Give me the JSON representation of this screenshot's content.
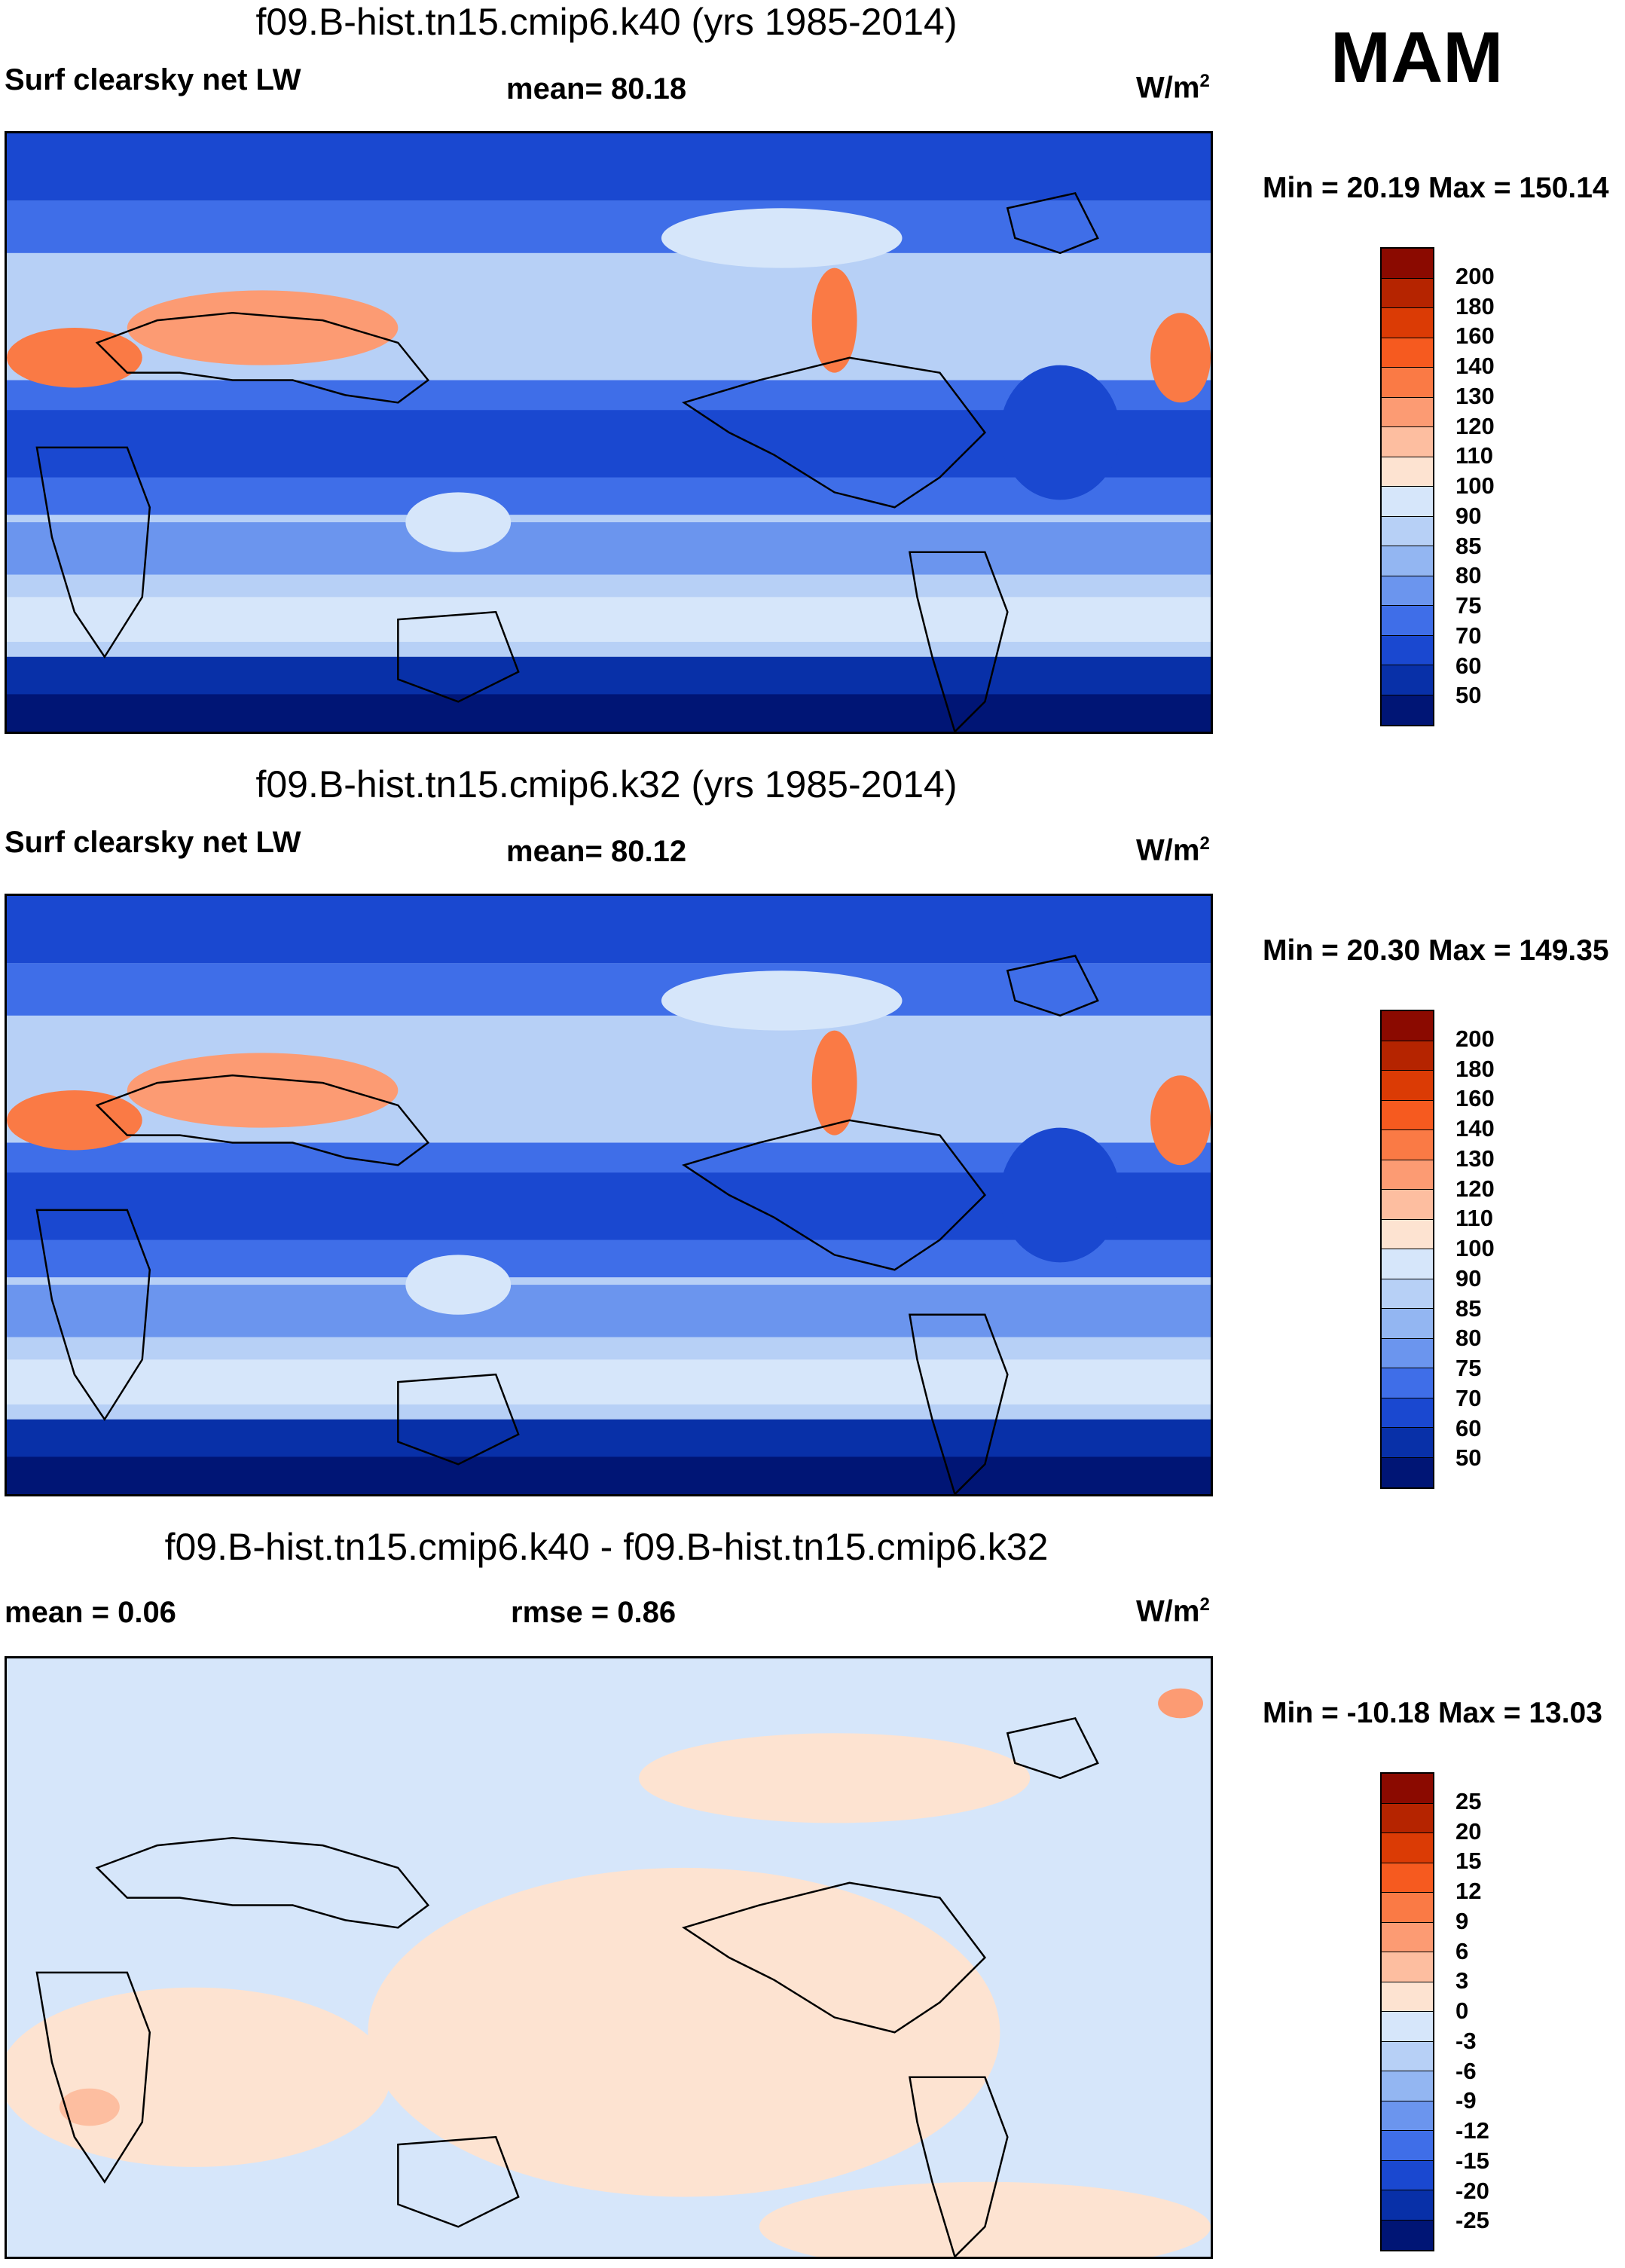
{
  "season": "MAM",
  "panels": [
    {
      "title": "f09.B-hist.tn15.cmip6.k40 (yrs 1985-2014)",
      "left_label": "Surf clearsky net LW",
      "center_label": "mean=  80.18",
      "units_base": "W/m",
      "units_sup": "2",
      "minmax": "Min =  20.19 Max = 150.14",
      "colorbar_ticks": [
        "200",
        "180",
        "160",
        "140",
        "130",
        "120",
        "110",
        "100",
        "90",
        "85",
        "80",
        "75",
        "70",
        "60",
        "50"
      ],
      "colorbar_colors": [
        "#8b0a00",
        "#b52400",
        "#db3b05",
        "#f65a1f",
        "#fa7a45",
        "#fc9b73",
        "#fdbea0",
        "#fde3d1",
        "#d6e6fa",
        "#b7d0f6",
        "#93b6f2",
        "#6b95ee",
        "#3f6ee8",
        "#1a48d0",
        "#0830a8",
        "#001575"
      ],
      "map_variant": "abs"
    },
    {
      "title": "f09.B-hist.tn15.cmip6.k32 (yrs 1985-2014)",
      "left_label": "Surf clearsky net LW",
      "center_label": "mean=  80.12",
      "units_base": "W/m",
      "units_sup": "2",
      "minmax": "Min =  20.30 Max = 149.35",
      "colorbar_ticks": [
        "200",
        "180",
        "160",
        "140",
        "130",
        "120",
        "110",
        "100",
        "90",
        "85",
        "80",
        "75",
        "70",
        "60",
        "50"
      ],
      "colorbar_colors": [
        "#8b0a00",
        "#b52400",
        "#db3b05",
        "#f65a1f",
        "#fa7a45",
        "#fc9b73",
        "#fdbea0",
        "#fde3d1",
        "#d6e6fa",
        "#b7d0f6",
        "#93b6f2",
        "#6b95ee",
        "#3f6ee8",
        "#1a48d0",
        "#0830a8",
        "#001575"
      ],
      "map_variant": "abs"
    },
    {
      "title": "f09.B-hist.tn15.cmip6.k40 - f09.B-hist.tn15.cmip6.k32",
      "left_label": "mean =   0.06",
      "center_label": "rmse =   0.86",
      "units_base": "W/m",
      "units_sup": "2",
      "minmax": "Min = -10.18 Max =  13.03",
      "colorbar_ticks": [
        "25",
        "20",
        "15",
        "12",
        "9",
        "6",
        "3",
        "0",
        "-3",
        "-6",
        "-9",
        "-12",
        "-15",
        "-20",
        "-25"
      ],
      "colorbar_colors": [
        "#8b0a00",
        "#b52400",
        "#db3b05",
        "#f65a1f",
        "#fa7a45",
        "#fc9b73",
        "#fdbea0",
        "#fde3d1",
        "#d6e6fa",
        "#b7d0f6",
        "#93b6f2",
        "#6b95ee",
        "#3f6ee8",
        "#1a48d0",
        "#0830a8",
        "#001575"
      ],
      "map_variant": "diff"
    }
  ]
}
